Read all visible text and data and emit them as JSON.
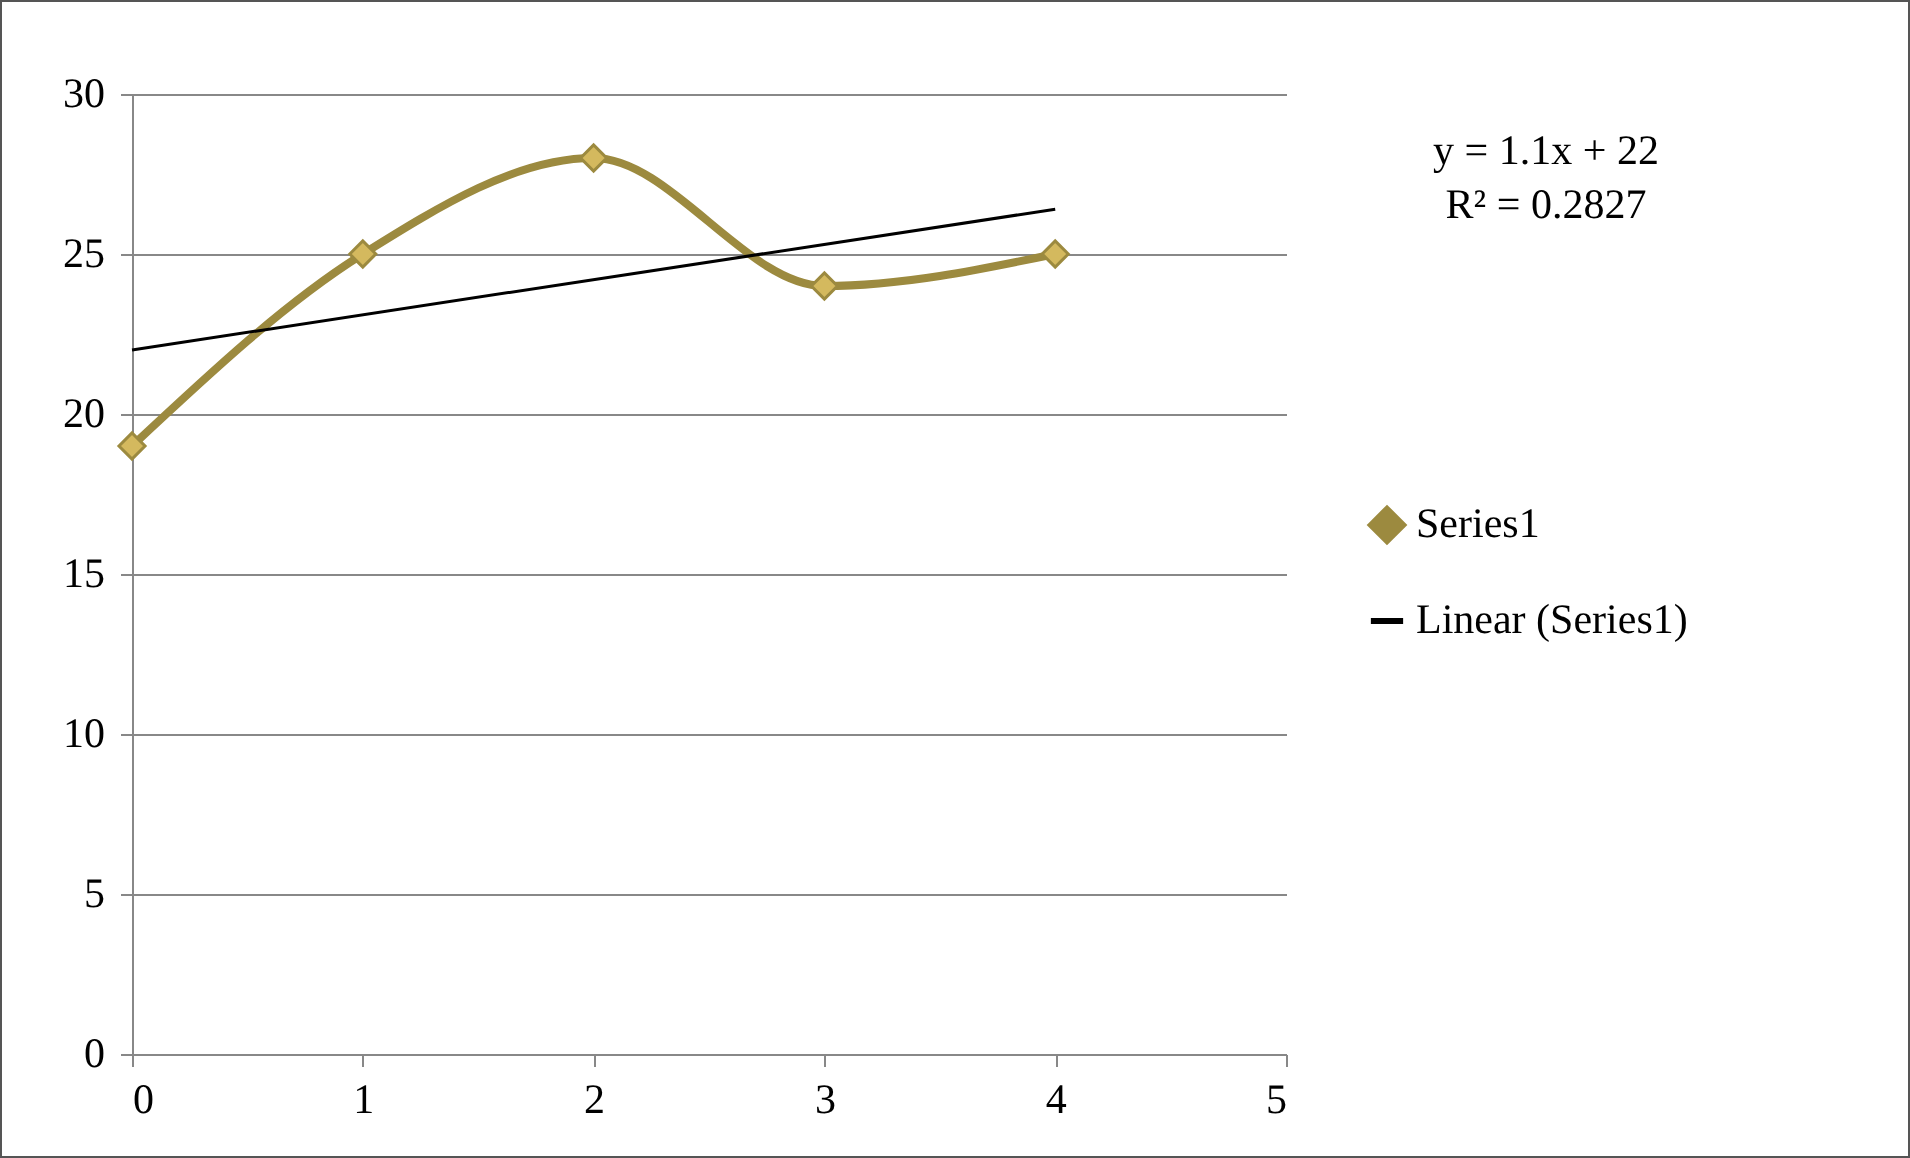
{
  "chart_data": {
    "type": "line",
    "marker": "diamond",
    "grid": "y",
    "legend": "right",
    "xlim": [
      0,
      5
    ],
    "xticks": [
      0,
      1,
      2,
      3,
      4,
      5
    ],
    "ylim": [
      0,
      30
    ],
    "yticks": [
      0,
      5,
      10,
      15,
      20,
      25,
      30
    ],
    "annotations": [
      "y = 1.1x + 22",
      "R² = 0.2827"
    ],
    "series": [
      {
        "name": "Series1",
        "color": "#9c8a3f",
        "x": [
          0,
          1,
          2,
          3,
          4
        ],
        "values": [
          19,
          25,
          28,
          24,
          25
        ]
      },
      {
        "name": "Linear (Series1)",
        "type": "line",
        "marker": "none",
        "color": "#000000",
        "x": [
          0,
          4
        ],
        "values": [
          22,
          26.4
        ]
      }
    ]
  }
}
